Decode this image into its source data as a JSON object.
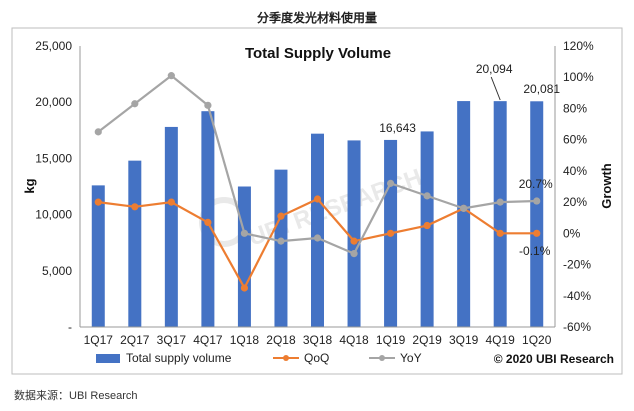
{
  "page": {
    "caption": "分季度发光材料使用量",
    "source": "数据来源：UBI Research"
  },
  "chart_data": {
    "type": "bar",
    "title": "Total Supply  Volume",
    "categories": [
      "1Q17",
      "2Q17",
      "3Q17",
      "4Q17",
      "1Q18",
      "2Q18",
      "3Q18",
      "4Q18",
      "1Q19",
      "2Q19",
      "3Q19",
      "4Q19",
      "1Q20"
    ],
    "series": [
      {
        "name": "Total supply volume",
        "kind": "bar",
        "axis": "left",
        "color": "#4472C4",
        "values": [
          12600,
          14800,
          17800,
          19200,
          12500,
          14000,
          17200,
          16600,
          16643,
          17400,
          20100,
          20094,
          20081
        ]
      },
      {
        "name": "QoQ",
        "kind": "line",
        "axis": "right",
        "color": "#ED7D31",
        "values": [
          20,
          17,
          20,
          7,
          -35,
          11,
          22,
          -5,
          0,
          5,
          16,
          0,
          0
        ]
      },
      {
        "name": "YoY",
        "kind": "line",
        "axis": "right",
        "color": "#A5A5A5",
        "values": [
          65,
          83,
          101,
          82,
          0,
          -5,
          -3,
          -13,
          32,
          24,
          16,
          20,
          20.7
        ]
      }
    ],
    "ylabel": "kg",
    "ylim": [
      0,
      25000
    ],
    "yticks": [
      "-",
      "5,000",
      "10,000",
      "15,000",
      "20,000",
      "25,000"
    ],
    "y2label": "Growth",
    "y2lim": [
      -60,
      120
    ],
    "y2ticks": [
      "-60%",
      "-40%",
      "-20%",
      "0%",
      "20%",
      "40%",
      "60%",
      "80%",
      "100%",
      "120%"
    ],
    "annotations": [
      {
        "text": "16,643",
        "category": "1Q19"
      },
      {
        "text": "20,094",
        "category": "4Q19"
      },
      {
        "text": "20,081",
        "category": "1Q20"
      },
      {
        "text": "20.7%",
        "category": "1Q20"
      },
      {
        "text": "-0.1%",
        "category": "1Q20"
      }
    ],
    "legend": [
      "Total supply volume",
      "QoQ",
      "YoY"
    ],
    "copyright": "© 2020 UBI Research",
    "watermark": "UBI RESEARCH"
  }
}
